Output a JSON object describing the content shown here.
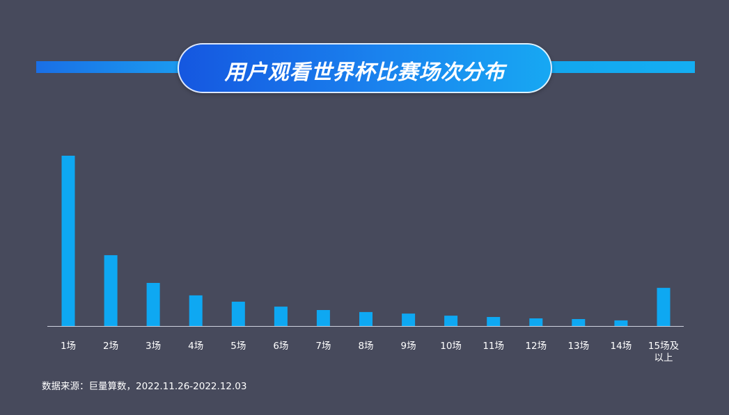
{
  "title": "用户观看世界杯比赛场次分布",
  "source": "数据来源：巨量算数，2022.11.26-2022.12.03",
  "colors": {
    "background": "#474a5c",
    "bar": "#0ea8f2",
    "axis": "#cfd2de"
  },
  "chart_data": {
    "type": "bar",
    "title": "用户观看世界杯比赛场次分布",
    "xlabel": "",
    "ylabel": "",
    "value_note": "relative heights, tallest bar = 100 (no value axis shown)",
    "categories": [
      "1场",
      "2场",
      "3场",
      "4场",
      "5场",
      "6场",
      "7场",
      "8场",
      "9场",
      "10场",
      "11场",
      "12场",
      "13场",
      "14场",
      "15场及以上"
    ],
    "category_label_lines": [
      [
        "1场"
      ],
      [
        "2场"
      ],
      [
        "3场"
      ],
      [
        "4场"
      ],
      [
        "5场"
      ],
      [
        "6场"
      ],
      [
        "7场"
      ],
      [
        "8场"
      ],
      [
        "9场"
      ],
      [
        "10场"
      ],
      [
        "11场"
      ],
      [
        "12场"
      ],
      [
        "13场"
      ],
      [
        "14场"
      ],
      [
        "15场及",
        "以上"
      ]
    ],
    "values": [
      100,
      41.6,
      25.3,
      18.0,
      14.3,
      11.4,
      9.4,
      8.2,
      7.3,
      6.1,
      5.3,
      4.5,
      4.1,
      3.3,
      22.4
    ],
    "ylim": [
      0,
      100
    ],
    "grid": false,
    "legend": "none"
  }
}
